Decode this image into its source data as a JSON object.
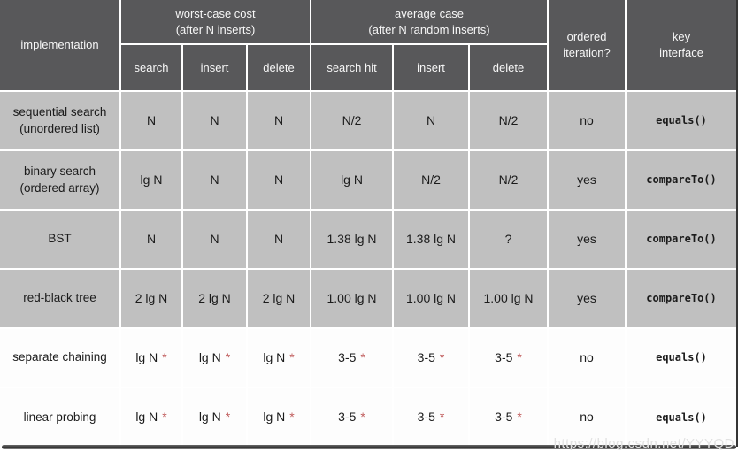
{
  "watermark": "https://blog.csdn.net/YYYQD",
  "colors": {
    "header_bg": "#58585a",
    "row_gray": "#c0c0c0",
    "row_white": "#fdfdfd",
    "grid_line": "#ffffff",
    "star_red": "#c05c5c",
    "watermark_gray": "#e2e2e2"
  },
  "chart_data": {
    "type": "table",
    "star": "*",
    "column_groups": [
      {
        "label": "worst-case cost\n(after N inserts)",
        "sub_columns": [
          "search",
          "insert",
          "delete"
        ]
      },
      {
        "label": "average case\n(after N random inserts)",
        "sub_columns": [
          "search hit",
          "insert",
          "delete"
        ]
      }
    ],
    "columns": [
      "implementation",
      "search",
      "insert",
      "delete",
      "search hit",
      "insert",
      "delete",
      "ordered\niteration?",
      "key\ninterface"
    ],
    "rows": [
      {
        "name": "sequential search\n(unordered list)",
        "worst_search": "N",
        "worst_insert": "N",
        "worst_delete": "N",
        "avg_search_hit": "N/2",
        "avg_insert": "N",
        "avg_delete": "N/2",
        "ordered_iteration": "no",
        "key_interface": "equals()",
        "starred": false
      },
      {
        "name": "binary search\n(ordered array)",
        "worst_search": "lg N",
        "worst_insert": "N",
        "worst_delete": "N",
        "avg_search_hit": "lg N",
        "avg_insert": "N/2",
        "avg_delete": "N/2",
        "ordered_iteration": "yes",
        "key_interface": "compareTo()",
        "starred": false
      },
      {
        "name": "BST",
        "worst_search": "N",
        "worst_insert": "N",
        "worst_delete": "N",
        "avg_search_hit": "1.38 lg N",
        "avg_insert": "1.38 lg N",
        "avg_delete": "?",
        "ordered_iteration": "yes",
        "key_interface": "compareTo()",
        "starred": false
      },
      {
        "name": "red-black tree",
        "worst_search": "2 lg N",
        "worst_insert": "2 lg N",
        "worst_delete": "2 lg N",
        "avg_search_hit": "1.00 lg N",
        "avg_insert": "1.00 lg N",
        "avg_delete": "1.00 lg N",
        "ordered_iteration": "yes",
        "key_interface": "compareTo()",
        "starred": false
      },
      {
        "name": "separate chaining",
        "worst_search": "lg N",
        "worst_insert": "lg N",
        "worst_delete": "lg N",
        "avg_search_hit": "3-5",
        "avg_insert": "3-5",
        "avg_delete": "3-5",
        "ordered_iteration": "no",
        "key_interface": "equals()",
        "starred": true
      },
      {
        "name": "linear probing",
        "worst_search": "lg N",
        "worst_insert": "lg N",
        "worst_delete": "lg N",
        "avg_search_hit": "3-5",
        "avg_insert": "3-5",
        "avg_delete": "3-5",
        "ordered_iteration": "no",
        "key_interface": "equals()",
        "starred": true
      }
    ]
  }
}
